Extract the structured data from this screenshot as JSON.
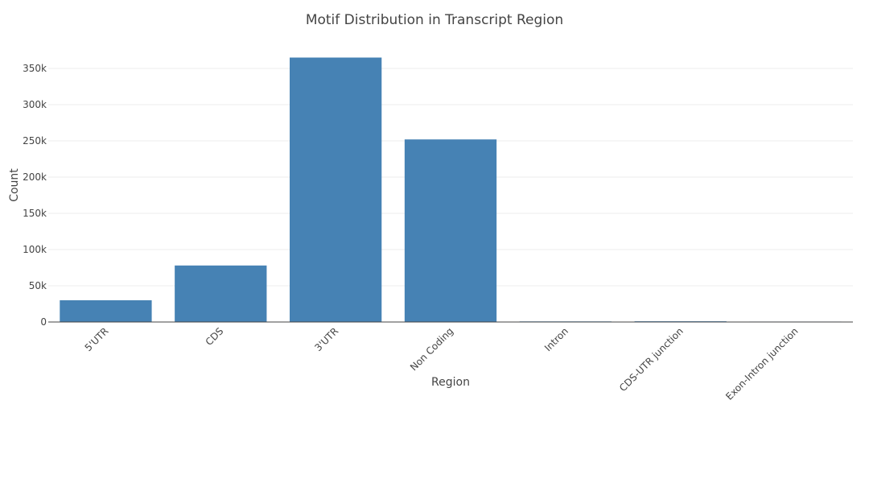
{
  "chart_data": {
    "type": "bar",
    "title": "Motif Distribution in Transcript Region",
    "xlabel": "Region",
    "ylabel": "Count",
    "categories": [
      "5'UTR",
      "CDS",
      "3'UTR",
      "Non Coding",
      "Intron",
      "CDS-UTR junction",
      "Exon-Intron junction"
    ],
    "values": [
      30000,
      78000,
      365000,
      252000,
      800,
      1000,
      600
    ],
    "ylim": [
      0,
      370000
    ],
    "yticks": [
      0,
      50000,
      100000,
      150000,
      200000,
      250000,
      300000,
      350000
    ],
    "ytick_labels": [
      "0",
      "50k",
      "100k",
      "150k",
      "200k",
      "250k",
      "300k",
      "350k"
    ],
    "bar_color": "#4682b4",
    "grid": true,
    "legend": "none"
  }
}
